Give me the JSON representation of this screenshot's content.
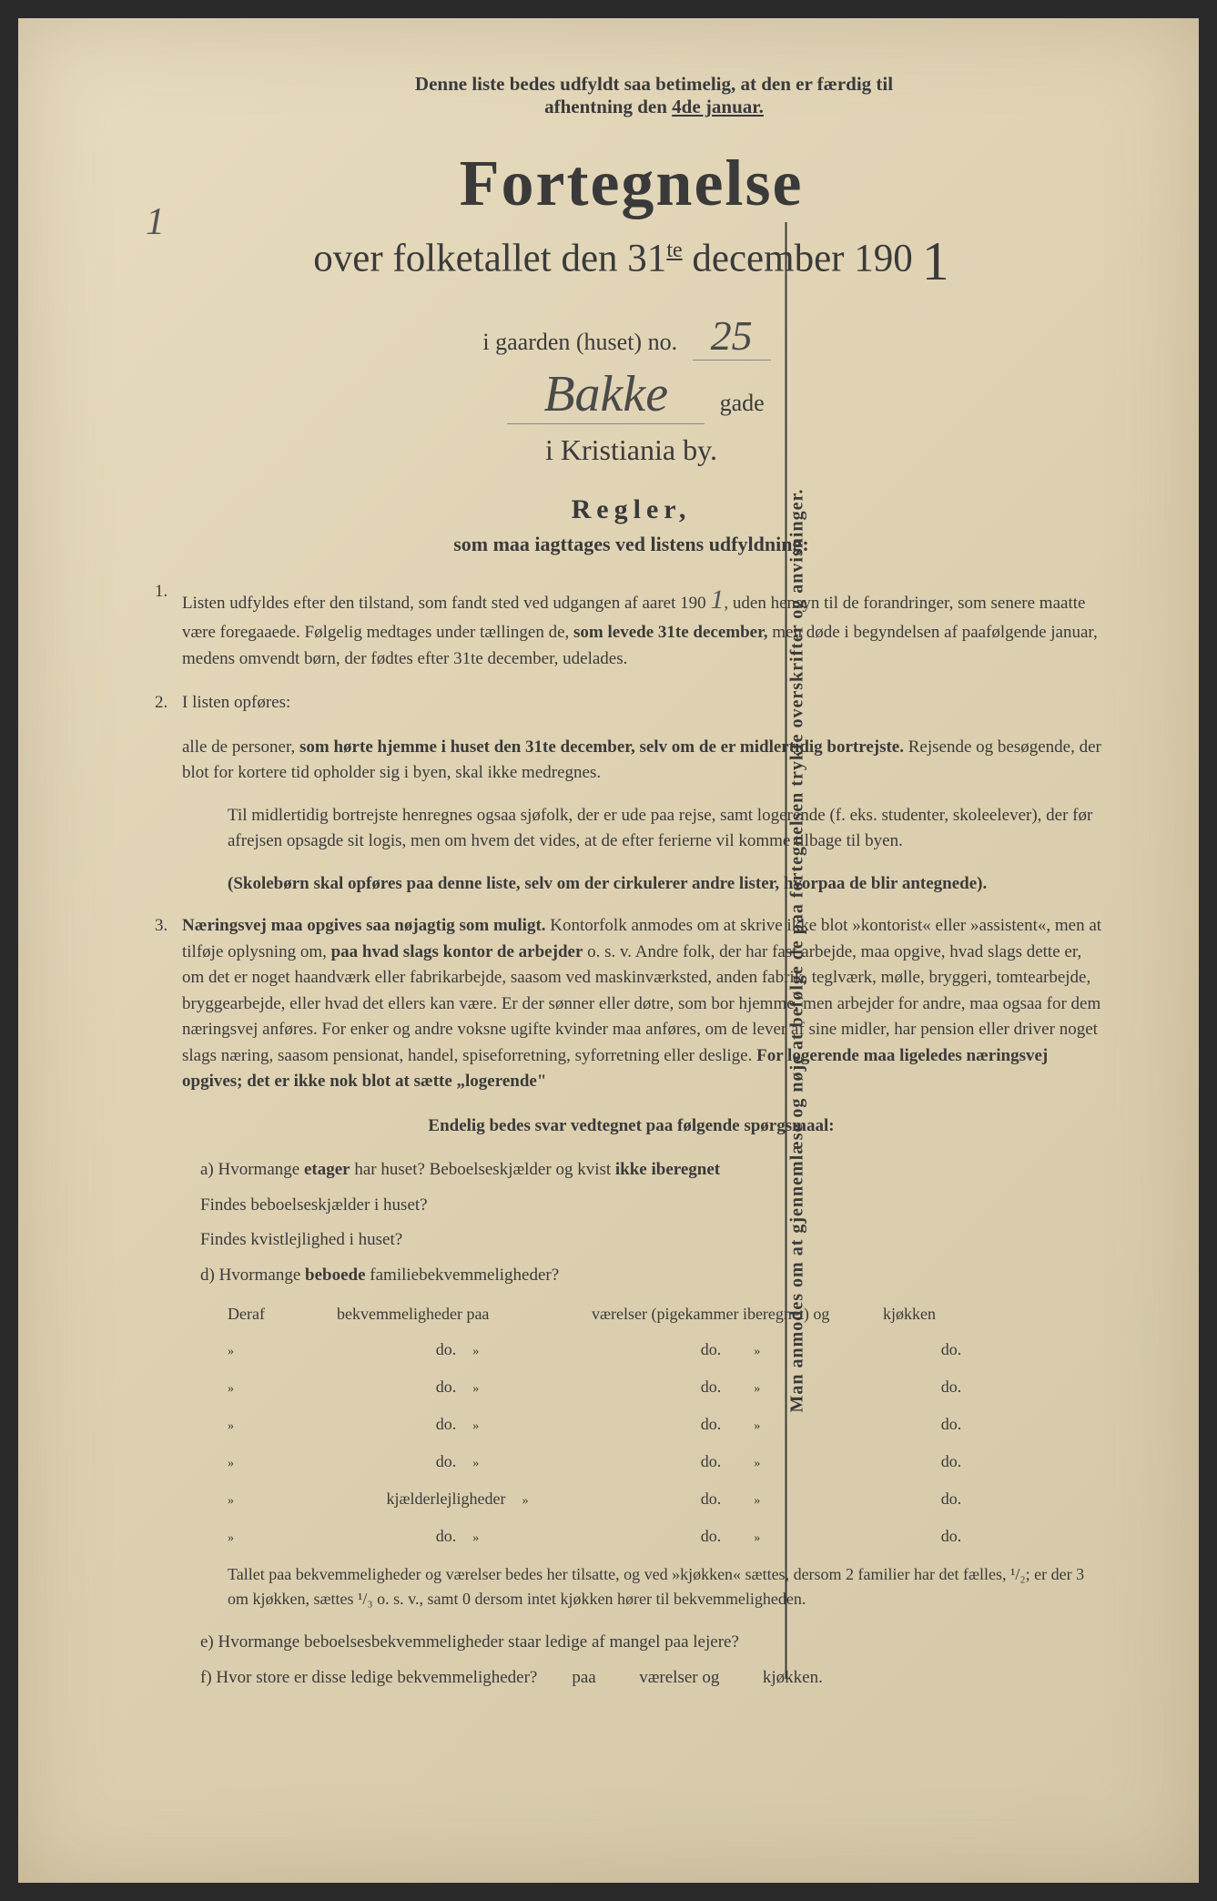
{
  "colors": {
    "paper": "#e8dcc0",
    "text": "#3a3a3a",
    "handwriting": "#4a4a4a"
  },
  "topNote": {
    "line1": "Denne liste bedes udfyldt saa betimelig, at den er færdig til",
    "line2_pre": "afhentning den ",
    "line2_underlined": "4de januar."
  },
  "pageNumber": "1",
  "title": "Fortegnelse",
  "subtitle_pre": "over folketallet den 31",
  "subtitle_sup": "te",
  "subtitle_post": " december 190",
  "year_handwritten": "1",
  "gaardLine": {
    "pre": "i gaarden (huset) no.",
    "value": "25"
  },
  "gadeLine": {
    "value": "Bakke",
    "post": "gade"
  },
  "cityLine": "i Kristiania by.",
  "reglerTitle": "Regler,",
  "reglerSub": "som maa iagttages ved listens udfyldning:",
  "rule1": {
    "num": "1.",
    "text_a": "Listen udfyldes efter den tilstand, som fandt sted ved udgangen af aaret 190 ",
    "year_hand": "1",
    "text_b": ", uden hensyn til de forandringer, som senere maatte være foregaaede. Følgelig medtages under tællingen de, ",
    "bold_b": "som levede 31te december,",
    "text_c": " men døde i begyndelsen af paafølgende januar, medens omvendt børn, der fødtes efter 31te december, udelades."
  },
  "rule2": {
    "num": "2.",
    "text_a": "I listen opføres:",
    "para_b_pre": "alle de personer, ",
    "para_b_bold": "som hørte hjemme i huset den 31te december, selv om de er midlertidig bortrejste.",
    "para_b_post": " Rejsende og besøgende, der blot for kortere tid opholder sig i byen, skal ikke medregnes.",
    "para_c": "Til midlertidig bortrejste henregnes ogsaa sjøfolk, der er ude paa rejse, samt logerende (f. eks. studenter, skoleelever), der før afrejsen opsagde sit logis, men om hvem det vides, at de efter ferierne vil komme tilbage til byen.",
    "para_d": "(Skolebørn skal opføres paa denne liste, selv om der cirkulerer andre lister, hvorpaa de blir antegnede)."
  },
  "rule3": {
    "num": "3.",
    "bold_a": "Næringsvej maa opgives saa nøjagtig som muligt.",
    "text_a": " Kontorfolk anmodes om at skrive ikke blot »kontorist« eller »assistent«, men at tilføje oplysning om, ",
    "bold_b": "paa hvad slags kontor de arbejder",
    "text_b": " o. s. v. Andre folk, der har fast arbejde, maa opgive, hvad slags dette er, om det er noget haandværk eller fabrikarbejde, saasom ved maskinværksted, anden fabrik, teglværk, mølle, bryggeri, tomtearbejde, bryggearbejde, eller hvad det ellers kan være. Er der sønner eller døtre, som bor hjemme, men arbejder for andre, maa ogsaa for dem næringsvej anføres. For enker og andre voksne ugifte kvinder maa anføres, om de lever af sine midler, har pension eller driver noget slags næring, saasom pensionat, handel, spiseforretning, syforretning eller deslige. ",
    "bold_c": "For logerende maa ligeledes næringsvej opgives; det er ikke nok blot at sætte „logerende\""
  },
  "endelig": "Endelig bedes svar vedtegnet paa følgende spørgsmaal:",
  "questions": {
    "a": "Hvormange etager har huset? Beboelseskjælder og kvist ikke iberegnet",
    "a_bold1": "etager",
    "a_bold2": "ikke iberegnet",
    "b": "Findes beboelseskjælder i huset?",
    "c": "Findes kvistlejlighed i huset?",
    "d_pre": "Hvormange ",
    "d_bold": "beboede",
    "d_post": " familiebekvemmeligheder?"
  },
  "tableHeader": {
    "col1": "Deraf",
    "col2": "bekvemmeligheder paa",
    "col3": "værelser (pigekammer iberegnet) og",
    "col4": "kjøkken"
  },
  "tableRows": [
    {
      "c1": "»",
      "c2": "do.",
      "c3": "do.",
      "c4": "do."
    },
    {
      "c1": "»",
      "c2": "do.",
      "c3": "do.",
      "c4": "do."
    },
    {
      "c1": "»",
      "c2": "do.",
      "c3": "do.",
      "c4": "do."
    },
    {
      "c1": "»",
      "c2": "do.",
      "c3": "do.",
      "c4": "do."
    },
    {
      "c1": "»",
      "c2": "kjælderlejligheder",
      "c3": "do.",
      "c4": "do."
    },
    {
      "c1": "»",
      "c2": "do.",
      "c3": "do.",
      "c4": "do."
    }
  ],
  "footerNote": "Tallet paa bekvemmeligheder og værelser bedes her tilsatte, og ved »kjøkken« sættes, dersom 2 familier har det fælles, ¹/₂; er der 3 om kjøkken, sættes ¹/₃ o. s. v., samt 0 dersom intet kjøkken hører til bekvemmeligheden.",
  "questionE": "Hvormange beboelsesbekvemmeligheder staar ledige af mangel paa lejere?",
  "questionF": {
    "text": "Hvor store er disse ledige bekvemmeligheder?",
    "mid1": "paa",
    "mid2": "værelser og",
    "mid3": "kjøkken."
  },
  "verticalText": "Man anmodes om at gjennemlæse og nøje at befølge de paa fortegnelsen trykte overskrifter og anvisninger."
}
